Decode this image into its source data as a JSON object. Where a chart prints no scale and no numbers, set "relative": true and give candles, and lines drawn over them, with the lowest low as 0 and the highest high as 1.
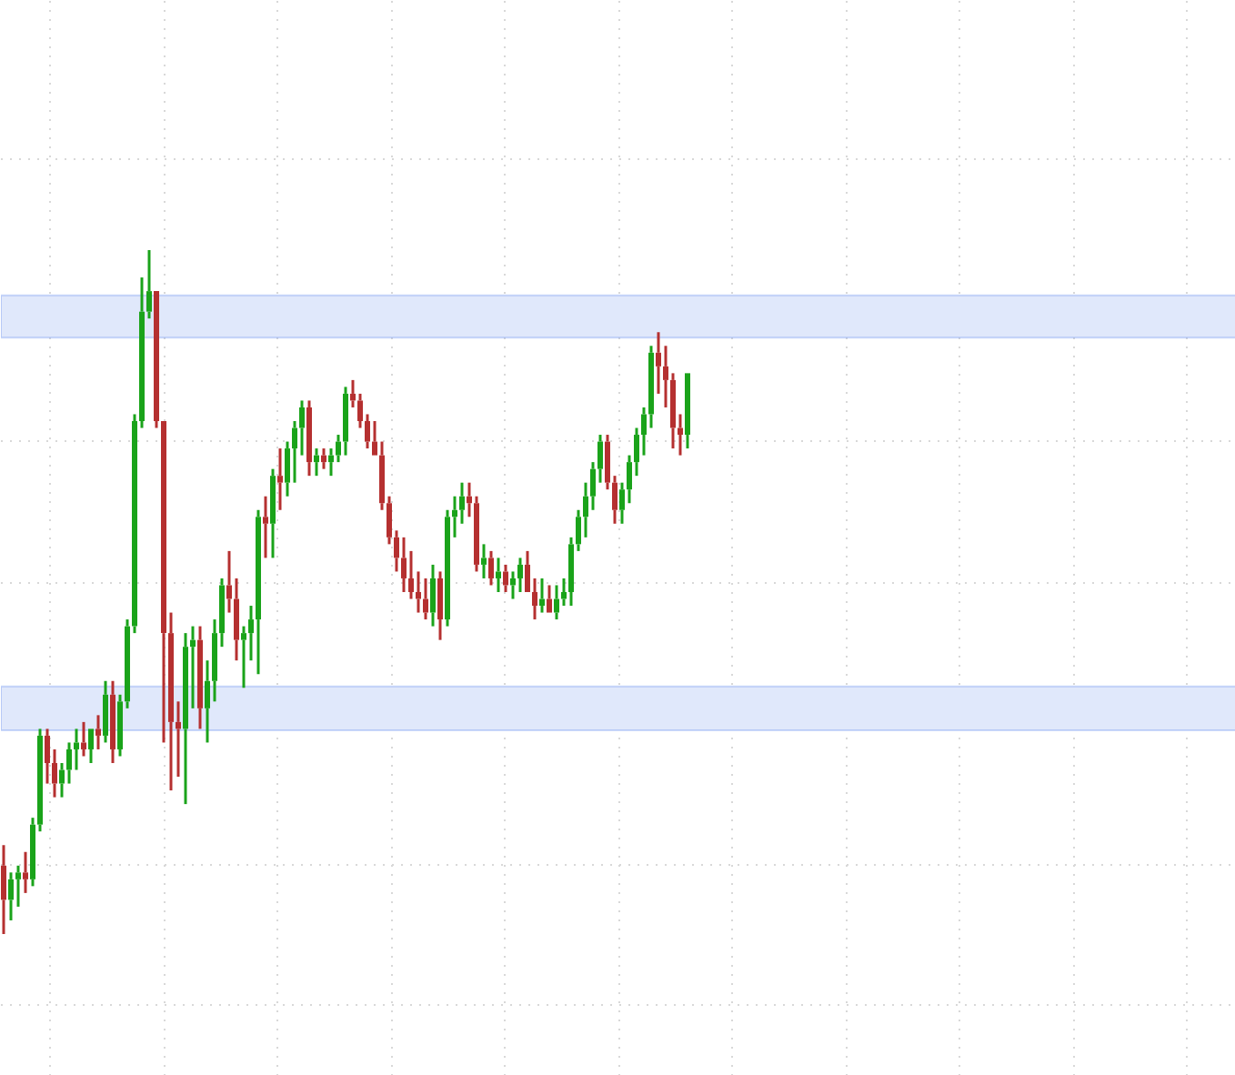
{
  "chart_data": {
    "type": "candlestick",
    "relative": true,
    "grid": true,
    "categories": [
      null,
      null,
      null,
      null,
      null,
      null,
      null,
      null,
      null,
      null,
      null,
      null,
      null,
      null,
      null,
      null,
      null,
      null,
      null,
      null,
      null,
      null,
      null,
      null,
      null,
      null,
      null,
      null,
      null,
      null,
      null,
      null,
      null,
      null,
      null,
      null,
      null,
      null,
      null,
      null,
      null,
      null,
      null,
      null,
      null,
      null,
      null,
      null,
      null,
      null,
      null,
      null,
      null,
      null,
      null,
      null,
      null,
      null,
      null,
      null,
      null,
      null,
      null,
      null,
      null,
      null,
      null,
      null,
      null,
      null,
      null,
      null,
      null,
      null,
      null,
      null,
      null,
      null,
      null,
      null,
      null,
      null,
      null,
      null,
      null,
      null,
      null,
      null,
      null,
      null,
      null,
      null,
      null,
      null,
      null
    ],
    "ohlc": [
      [
        0.1,
        0.13,
        0.0,
        0.05
      ],
      [
        0.05,
        0.09,
        0.02,
        0.08
      ],
      [
        0.08,
        0.1,
        0.04,
        0.09
      ],
      [
        0.09,
        0.12,
        0.06,
        0.08
      ],
      [
        0.08,
        0.17,
        0.07,
        0.16
      ],
      [
        0.16,
        0.3,
        0.15,
        0.29
      ],
      [
        0.29,
        0.3,
        0.22,
        0.25
      ],
      [
        0.25,
        0.27,
        0.2,
        0.22
      ],
      [
        0.22,
        0.25,
        0.2,
        0.24
      ],
      [
        0.24,
        0.28,
        0.22,
        0.27
      ],
      [
        0.27,
        0.3,
        0.24,
        0.28
      ],
      [
        0.28,
        0.31,
        0.26,
        0.27
      ],
      [
        0.27,
        0.3,
        0.25,
        0.3
      ],
      [
        0.3,
        0.32,
        0.27,
        0.29
      ],
      [
        0.29,
        0.37,
        0.28,
        0.35
      ],
      [
        0.35,
        0.37,
        0.25,
        0.27
      ],
      [
        0.27,
        0.35,
        0.26,
        0.34
      ],
      [
        0.34,
        0.46,
        0.33,
        0.45
      ],
      [
        0.45,
        0.76,
        0.44,
        0.75
      ],
      [
        0.75,
        0.96,
        0.74,
        0.91
      ],
      [
        0.91,
        1.0,
        0.9,
        0.94
      ],
      [
        0.94,
        0.94,
        0.74,
        0.75
      ],
      [
        0.75,
        0.75,
        0.28,
        0.44
      ],
      [
        0.44,
        0.47,
        0.21,
        0.31
      ],
      [
        0.31,
        0.34,
        0.23,
        0.3
      ],
      [
        0.3,
        0.44,
        0.19,
        0.42
      ],
      [
        0.42,
        0.45,
        0.33,
        0.43
      ],
      [
        0.43,
        0.45,
        0.3,
        0.33
      ],
      [
        0.33,
        0.4,
        0.28,
        0.37
      ],
      [
        0.37,
        0.46,
        0.34,
        0.44
      ],
      [
        0.44,
        0.52,
        0.42,
        0.51
      ],
      [
        0.51,
        0.56,
        0.47,
        0.49
      ],
      [
        0.49,
        0.52,
        0.4,
        0.43
      ],
      [
        0.43,
        0.45,
        0.36,
        0.44
      ],
      [
        0.44,
        0.48,
        0.4,
        0.46
      ],
      [
        0.46,
        0.62,
        0.38,
        0.61
      ],
      [
        0.61,
        0.64,
        0.55,
        0.6
      ],
      [
        0.6,
        0.68,
        0.55,
        0.67
      ],
      [
        0.67,
        0.71,
        0.62,
        0.66
      ],
      [
        0.66,
        0.72,
        0.64,
        0.71
      ],
      [
        0.71,
        0.75,
        0.66,
        0.74
      ],
      [
        0.74,
        0.78,
        0.7,
        0.77
      ],
      [
        0.77,
        0.78,
        0.67,
        0.69
      ],
      [
        0.69,
        0.71,
        0.67,
        0.7
      ],
      [
        0.7,
        0.71,
        0.68,
        0.69
      ],
      [
        0.69,
        0.71,
        0.67,
        0.7
      ],
      [
        0.7,
        0.73,
        0.69,
        0.72
      ],
      [
        0.72,
        0.8,
        0.7,
        0.79
      ],
      [
        0.79,
        0.81,
        0.77,
        0.78
      ],
      [
        0.78,
        0.79,
        0.74,
        0.75
      ],
      [
        0.75,
        0.76,
        0.71,
        0.72
      ],
      [
        0.72,
        0.75,
        0.7,
        0.7
      ],
      [
        0.7,
        0.72,
        0.62,
        0.63
      ],
      [
        0.63,
        0.64,
        0.57,
        0.58
      ],
      [
        0.58,
        0.59,
        0.53,
        0.55
      ],
      [
        0.55,
        0.58,
        0.5,
        0.52
      ],
      [
        0.52,
        0.56,
        0.49,
        0.5
      ],
      [
        0.5,
        0.53,
        0.47,
        0.49
      ],
      [
        0.49,
        0.52,
        0.46,
        0.47
      ],
      [
        0.47,
        0.54,
        0.45,
        0.52
      ],
      [
        0.52,
        0.53,
        0.43,
        0.46
      ],
      [
        0.46,
        0.62,
        0.45,
        0.61
      ],
      [
        0.61,
        0.64,
        0.58,
        0.62
      ],
      [
        0.62,
        0.66,
        0.6,
        0.64
      ],
      [
        0.64,
        0.66,
        0.61,
        0.63
      ],
      [
        0.63,
        0.64,
        0.53,
        0.54
      ],
      [
        0.54,
        0.57,
        0.52,
        0.55
      ],
      [
        0.55,
        0.56,
        0.51,
        0.52
      ],
      [
        0.52,
        0.55,
        0.5,
        0.53
      ],
      [
        0.53,
        0.54,
        0.5,
        0.51
      ],
      [
        0.51,
        0.53,
        0.49,
        0.52
      ],
      [
        0.52,
        0.55,
        0.5,
        0.54
      ],
      [
        0.54,
        0.56,
        0.5,
        0.5
      ],
      [
        0.5,
        0.52,
        0.46,
        0.48
      ],
      [
        0.48,
        0.52,
        0.47,
        0.49
      ],
      [
        0.49,
        0.51,
        0.47,
        0.47
      ],
      [
        0.47,
        0.51,
        0.46,
        0.49
      ],
      [
        0.49,
        0.52,
        0.48,
        0.5
      ],
      [
        0.5,
        0.58,
        0.48,
        0.57
      ],
      [
        0.57,
        0.62,
        0.56,
        0.61
      ],
      [
        0.61,
        0.66,
        0.58,
        0.64
      ],
      [
        0.64,
        0.69,
        0.62,
        0.68
      ],
      [
        0.68,
        0.73,
        0.66,
        0.72
      ],
      [
        0.72,
        0.73,
        0.65,
        0.66
      ],
      [
        0.66,
        0.67,
        0.6,
        0.62
      ],
      [
        0.62,
        0.66,
        0.6,
        0.65
      ],
      [
        0.65,
        0.7,
        0.63,
        0.69
      ],
      [
        0.69,
        0.74,
        0.67,
        0.73
      ],
      [
        0.73,
        0.77,
        0.7,
        0.76
      ],
      [
        0.76,
        0.86,
        0.74,
        0.85
      ],
      [
        0.85,
        0.88,
        0.79,
        0.83
      ],
      [
        0.83,
        0.86,
        0.77,
        0.81
      ],
      [
        0.81,
        0.82,
        0.71,
        0.74
      ],
      [
        0.74,
        0.76,
        0.7,
        0.73
      ],
      [
        0.73,
        0.82,
        0.71,
        0.82
      ]
    ],
    "bands": [
      {
        "axis": "y",
        "from": 0.872,
        "to": 0.934,
        "color": "#e0e8fb"
      },
      {
        "axis": "y",
        "from": 0.298,
        "to": 0.362,
        "color": "#e0e8fb"
      }
    ]
  }
}
